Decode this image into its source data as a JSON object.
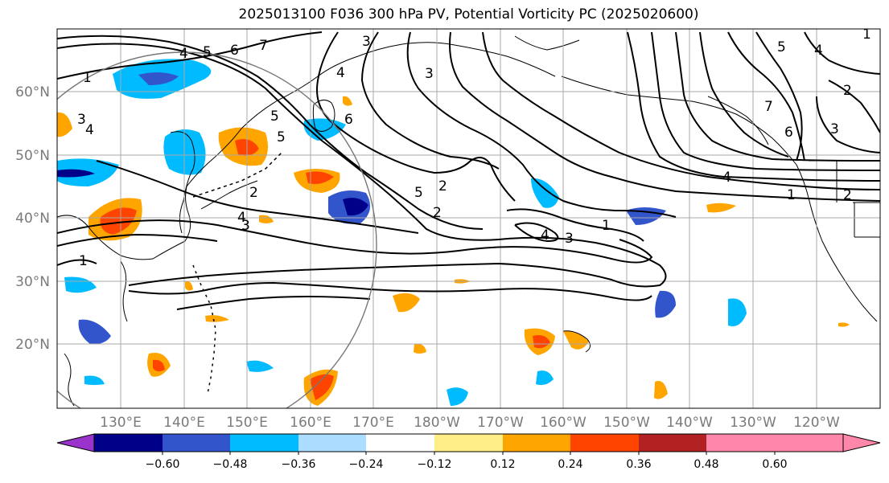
{
  "title": "2025013100 F036 300 hPa PV, Potential Vorticity PC (2025020600)",
  "lat_labels": [
    "60°N",
    "50°N",
    "40°N",
    "30°N",
    "20°N"
  ],
  "lon_labels": [
    "130°E",
    "140°E",
    "150°E",
    "160°E",
    "170°E",
    "180°W",
    "170°W",
    "160°W",
    "150°W",
    "140°W",
    "130°W",
    "120°W"
  ],
  "colorbar": {
    "colors": [
      "#9933cc",
      "#000088",
      "#3355cc",
      "#00bbff",
      "#aaddff",
      "#ffffff",
      "#ffee88",
      "#ffa500",
      "#ff4400",
      "#b22222",
      "#ff88aa"
    ],
    "ticks": [
      "−0.60",
      "−0.48",
      "−0.36",
      "−0.24",
      "−0.12",
      "0.12",
      "0.24",
      "0.36",
      "0.48",
      "0.60"
    ]
  },
  "contour_labels": [
    "1",
    "4",
    "5",
    "6",
    "7",
    "3",
    "1",
    "3",
    "4",
    "6",
    "2",
    "5",
    "2",
    "3",
    "4",
    "3",
    "4",
    "5",
    "1",
    "3",
    "4",
    "5",
    "1",
    "7",
    "6",
    "3",
    "2",
    "4",
    "1",
    "2",
    "2",
    "4",
    "5"
  ]
}
